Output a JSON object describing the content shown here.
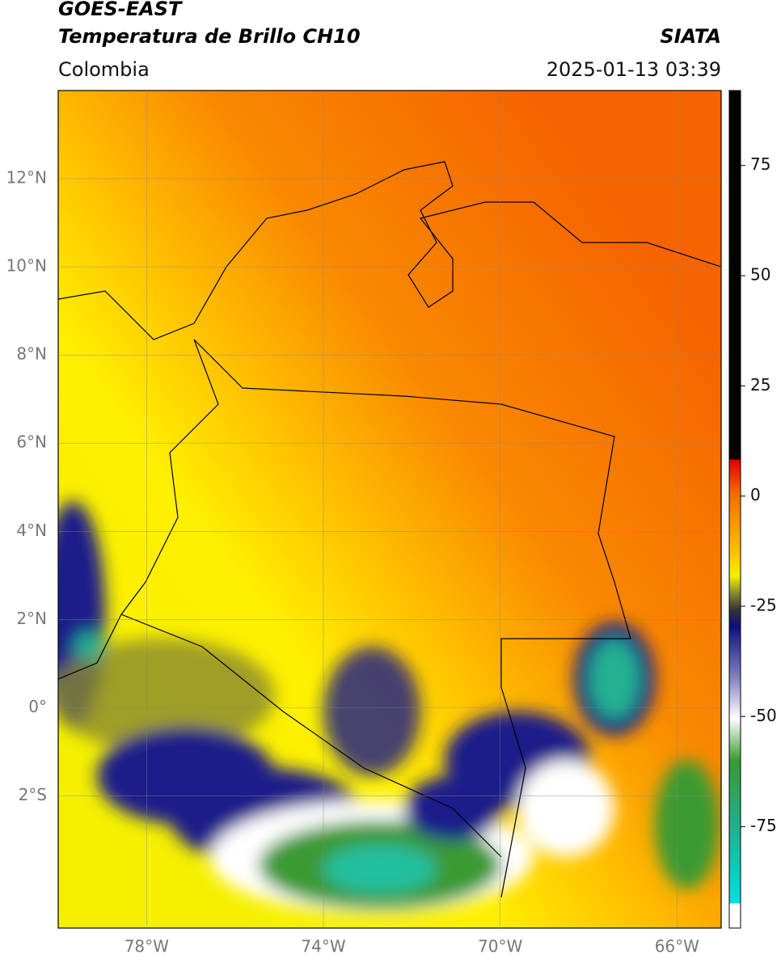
{
  "header": {
    "title": "GOES-EAST",
    "subtitle": "Temperatura de Brillo CH10",
    "source": "SIATA",
    "region": "Colombia",
    "datetime": "2025-01-13 03:39"
  },
  "map": {
    "xlim": [
      -80,
      -65
    ],
    "ylim": [
      -5,
      14
    ],
    "xticks": [
      {
        "value": -78,
        "label": "78°W"
      },
      {
        "value": -74,
        "label": "74°W"
      },
      {
        "value": -70,
        "label": "70°W"
      },
      {
        "value": -66,
        "label": "66°W"
      }
    ],
    "yticks": [
      {
        "value": 12,
        "label": "12°N"
      },
      {
        "value": 10,
        "label": "10°N"
      },
      {
        "value": 8,
        "label": "8°N"
      },
      {
        "value": 6,
        "label": "6°N"
      },
      {
        "value": 4,
        "label": "4°N"
      },
      {
        "value": 2,
        "label": "2°N"
      },
      {
        "value": 0,
        "label": "0°"
      },
      {
        "value": -2,
        "label": "2°S"
      }
    ],
    "grid": true
  },
  "colorbar": {
    "range": [
      -98,
      92
    ],
    "ticks": [
      75,
      50,
      25,
      0,
      -25,
      -50,
      -75
    ]
  }
}
